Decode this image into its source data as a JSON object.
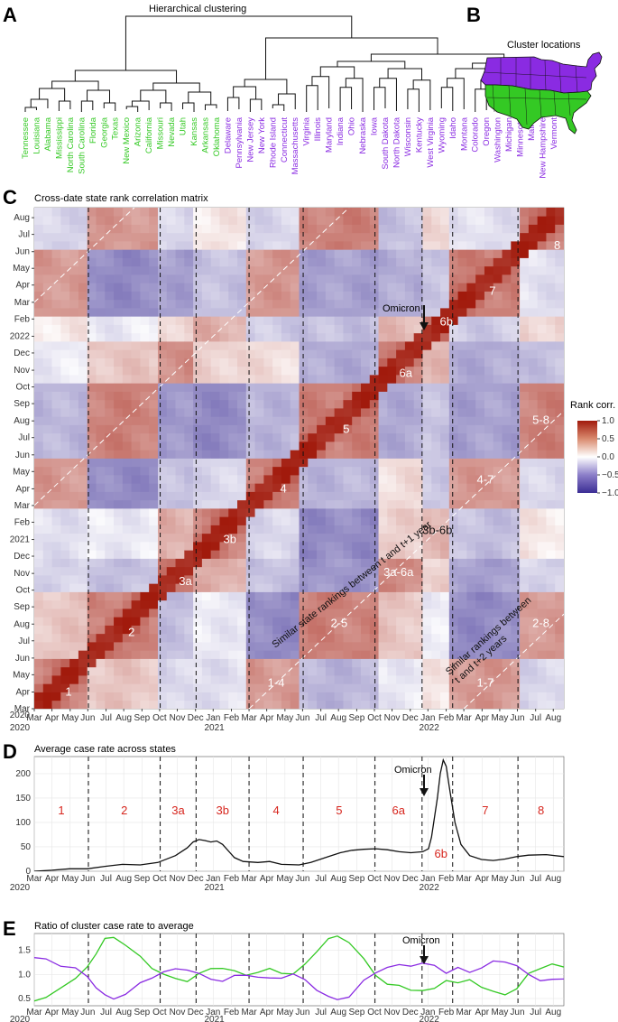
{
  "panels": {
    "A": {
      "letter": "A",
      "title": "Hierarchical clustering"
    },
    "B": {
      "letter": "B",
      "title": "Cluster locations"
    },
    "C": {
      "letter": "C",
      "title": "Cross-date state rank correlation matrix"
    },
    "D": {
      "letter": "D",
      "title": "Average case rate across states"
    },
    "E": {
      "letter": "E",
      "title": "Ratio of cluster case rate to average"
    }
  },
  "colors": {
    "green": "#34c924",
    "purple": "#8a2be2",
    "corr_high": "#a11a0c",
    "corr_low": "#3b2d94",
    "wave": "#d7261e"
  },
  "chart_data": [
    {
      "type": "dendrogram",
      "title": "Hierarchical clustering",
      "clusters": [
        {
          "name": "green",
          "leaves": [
            "Tennessee",
            "Louisiana",
            "Alabama",
            "Mississippi",
            "North Carolina",
            "South Carolina",
            "Florida",
            "Georgia",
            "Texas",
            "New Mexico",
            "Arizona",
            "California",
            "Missouri",
            "Nevada",
            "Utah",
            "Kansas",
            "Arkansas",
            "Oklahoma"
          ]
        },
        {
          "name": "purple",
          "leaves": [
            "Delaware",
            "Pennsylvania",
            "New Jersey",
            "New York",
            "Rhode Island",
            "Connecticut",
            "Massachusetts",
            "Virginia",
            "Illinois",
            "Maryland",
            "Indiana",
            "Ohio",
            "Nebraska",
            "Iowa",
            "South Dakota",
            "North Dakota",
            "Wisconsin",
            "Kentucky",
            "West Virginia",
            "Wyoming",
            "Idaho",
            "Montana",
            "Colorado",
            "Oregon",
            "Washington",
            "Michigan",
            "Minnesota",
            "Maine",
            "New Hampshire",
            "Vermont"
          ]
        }
      ]
    },
    {
      "type": "map",
      "title": "Cluster locations",
      "regions": [
        "purple: north",
        "green: south"
      ]
    },
    {
      "type": "heatmap",
      "title": "Cross-date state rank correlation matrix",
      "x_ticks": [
        "Mar",
        "Apr",
        "May",
        "Jun",
        "Jul",
        "Aug",
        "Sep",
        "Oct",
        "Nov",
        "Dec",
        "Jan",
        "Feb",
        "Mar",
        "Apr",
        "May",
        "Jun",
        "Jul",
        "Aug",
        "Sep",
        "Oct",
        "Nov",
        "Dec",
        "Jan",
        "Feb",
        "Mar",
        "Apr",
        "May",
        "Jun",
        "Jul",
        "Aug"
      ],
      "x_years": [
        "2020",
        "2021",
        "2022"
      ],
      "y_ticks": [
        "Mar",
        "Apr",
        "May",
        "Jun",
        "Jul",
        "Aug",
        "Sep",
        "Oct",
        "Nov",
        "Dec",
        "2021",
        "Feb",
        "Mar",
        "Apr",
        "May",
        "Jun",
        "Jul",
        "Aug",
        "Sep",
        "Oct",
        "Nov",
        "Dec",
        "2022",
        "Feb",
        "Mar",
        "Apr",
        "May",
        "Jun",
        "Jul",
        "Aug"
      ],
      "y_first": "2020",
      "legend": {
        "title": "Rank corr.",
        "ticks": [
          "1.0",
          "0.5",
          "0.0",
          "−0.5",
          "−1.0"
        ],
        "range": [
          -1,
          1
        ]
      },
      "segments": [
        "1",
        "2",
        "3a",
        "3b",
        "4",
        "5",
        "6a",
        "6b",
        "7",
        "8"
      ],
      "segment_boundaries": [
        "2020-06-01",
        "2020-10-01",
        "2020-12-01",
        "2021-03-01",
        "2021-06-01",
        "2021-10-01",
        "2021-12-20",
        "2022-02-10",
        "2022-06-01"
      ],
      "offdiag_labels": [
        "1-4",
        "2-5",
        "3a-6a",
        "3b-6b",
        "4-7",
        "5-8",
        "1-7",
        "2-8"
      ],
      "annotations": {
        "omicron": "Omicron",
        "diag1": "Similar state rankings between t and t+1 year",
        "diag2a": "Similar rankings between",
        "diag2b": "t and t+2 years"
      }
    },
    {
      "type": "line",
      "title": "Average case rate across states",
      "x_ticks": [
        "Mar",
        "Apr",
        "May",
        "Jun",
        "Jul",
        "Aug",
        "Sep",
        "Oct",
        "Nov",
        "Dec",
        "Jan",
        "Feb",
        "Mar",
        "Apr",
        "May",
        "Jun",
        "Jul",
        "Aug",
        "Sep",
        "Oct",
        "Nov",
        "Dec",
        "Jan",
        "Feb",
        "Mar",
        "Apr",
        "May",
        "Jun",
        "Jul",
        "Aug"
      ],
      "x_years": [
        "2020",
        "2021",
        "2022"
      ],
      "ylim": [
        0,
        235
      ],
      "y_ticks": [
        "0",
        "50",
        "100",
        "150",
        "200"
      ],
      "series": [
        {
          "values": [
            [
              0,
              0
            ],
            [
              30,
              2
            ],
            [
              60,
              5
            ],
            [
              90,
              5
            ],
            [
              120,
              10
            ],
            [
              150,
              14
            ],
            [
              180,
              13
            ],
            [
              210,
              18
            ],
            [
              240,
              32
            ],
            [
              260,
              48
            ],
            [
              270,
              60
            ],
            [
              280,
              65
            ],
            [
              290,
              63
            ],
            [
              300,
              60
            ],
            [
              310,
              62
            ],
            [
              320,
              55
            ],
            [
              340,
              28
            ],
            [
              355,
              20
            ],
            [
              380,
              18
            ],
            [
              400,
              20
            ],
            [
              420,
              14
            ],
            [
              450,
              13
            ],
            [
              470,
              18
            ],
            [
              500,
              30
            ],
            [
              520,
              38
            ],
            [
              540,
              43
            ],
            [
              560,
              45
            ],
            [
              580,
              46
            ],
            [
              600,
              44
            ],
            [
              620,
              40
            ],
            [
              640,
              38
            ],
            [
              660,
              40
            ],
            [
              670,
              46
            ],
            [
              675,
              70
            ],
            [
              685,
              150
            ],
            [
              690,
              200
            ],
            [
              695,
              228
            ],
            [
              700,
              215
            ],
            [
              705,
              175
            ],
            [
              715,
              100
            ],
            [
              725,
              55
            ],
            [
              740,
              32
            ],
            [
              760,
              24
            ],
            [
              780,
              22
            ],
            [
              800,
              25
            ],
            [
              820,
              30
            ],
            [
              840,
              33
            ],
            [
              870,
              34
            ],
            [
              900,
              30
            ]
          ]
        }
      ],
      "segments": [
        "1",
        "2",
        "3a",
        "3b",
        "4",
        "5",
        "6a",
        "7",
        "8"
      ],
      "segment_below": "6b",
      "annotation": "Omicron"
    },
    {
      "type": "line",
      "title": "Ratio of cluster case rate to average",
      "x_ticks": [
        "Mar",
        "Apr",
        "May",
        "Jun",
        "Jul",
        "Aug",
        "Sep",
        "Oct",
        "Nov",
        "Dec",
        "Jan",
        "Feb",
        "Mar",
        "Apr",
        "May",
        "Jun",
        "Jul",
        "Aug",
        "Sep",
        "Oct",
        "Nov",
        "Dec",
        "Jan",
        "Feb",
        "Mar",
        "Apr",
        "May",
        "Jun",
        "Jul",
        "Aug"
      ],
      "x_years": [
        "2020",
        "2021",
        "2022"
      ],
      "ylim": [
        0.35,
        1.85
      ],
      "y_ticks": [
        "0.5",
        "1.0",
        "1.5"
      ],
      "series": [
        {
          "color": "green",
          "values": [
            [
              0,
              0.45
            ],
            [
              20,
              0.5
            ],
            [
              45,
              0.75
            ],
            [
              70,
              0.9
            ],
            [
              90,
              1.15
            ],
            [
              105,
              1.45
            ],
            [
              120,
              1.72
            ],
            [
              135,
              1.78
            ],
            [
              155,
              1.62
            ],
            [
              180,
              1.35
            ],
            [
              200,
              1.15
            ],
            [
              220,
              1.0
            ],
            [
              240,
              0.9
            ],
            [
              260,
              0.88
            ],
            [
              280,
              1.0
            ],
            [
              300,
              1.12
            ],
            [
              320,
              1.15
            ],
            [
              340,
              1.05
            ],
            [
              360,
              1.0
            ],
            [
              380,
              1.05
            ],
            [
              400,
              1.1
            ],
            [
              420,
              1.05
            ],
            [
              440,
              1.0
            ],
            [
              460,
              1.2
            ],
            [
              480,
              1.5
            ],
            [
              500,
              1.72
            ],
            [
              515,
              1.8
            ],
            [
              535,
              1.68
            ],
            [
              560,
              1.3
            ],
            [
              580,
              1.0
            ],
            [
              600,
              0.8
            ],
            [
              620,
              0.75
            ],
            [
              640,
              0.7
            ],
            [
              660,
              0.65
            ],
            [
              680,
              0.7
            ],
            [
              700,
              0.9
            ],
            [
              720,
              0.8
            ],
            [
              740,
              0.9
            ],
            [
              760,
              0.75
            ],
            [
              780,
              0.62
            ],
            [
              800,
              0.6
            ],
            [
              820,
              0.7
            ],
            [
              840,
              1.0
            ],
            [
              860,
              1.15
            ],
            [
              880,
              1.2
            ],
            [
              900,
              1.15
            ]
          ]
        },
        {
          "color": "purple",
          "values": [
            [
              0,
              1.35
            ],
            [
              20,
              1.3
            ],
            [
              45,
              1.2
            ],
            [
              70,
              1.12
            ],
            [
              90,
              0.95
            ],
            [
              105,
              0.75
            ],
            [
              120,
              0.55
            ],
            [
              135,
              0.5
            ],
            [
              155,
              0.6
            ],
            [
              180,
              0.8
            ],
            [
              200,
              0.95
            ],
            [
              220,
              1.05
            ],
            [
              240,
              1.1
            ],
            [
              260,
              1.12
            ],
            [
              280,
              1.0
            ],
            [
              300,
              0.9
            ],
            [
              320,
              0.88
            ],
            [
              340,
              0.95
            ],
            [
              360,
              1.0
            ],
            [
              380,
              0.95
            ],
            [
              400,
              0.9
            ],
            [
              420,
              0.95
            ],
            [
              440,
              1.0
            ],
            [
              460,
              0.88
            ],
            [
              480,
              0.7
            ],
            [
              500,
              0.52
            ],
            [
              515,
              0.48
            ],
            [
              535,
              0.55
            ],
            [
              560,
              0.85
            ],
            [
              580,
              1.05
            ],
            [
              600,
              1.15
            ],
            [
              620,
              1.18
            ],
            [
              640,
              1.2
            ],
            [
              660,
              1.22
            ],
            [
              680,
              1.18
            ],
            [
              700,
              1.05
            ],
            [
              720,
              1.12
            ],
            [
              740,
              1.05
            ],
            [
              760,
              1.15
            ],
            [
              780,
              1.25
            ],
            [
              800,
              1.28
            ],
            [
              820,
              1.18
            ],
            [
              840,
              0.98
            ],
            [
              860,
              0.9
            ],
            [
              880,
              0.88
            ],
            [
              900,
              0.9
            ]
          ]
        }
      ],
      "annotation": "Omicron"
    }
  ]
}
